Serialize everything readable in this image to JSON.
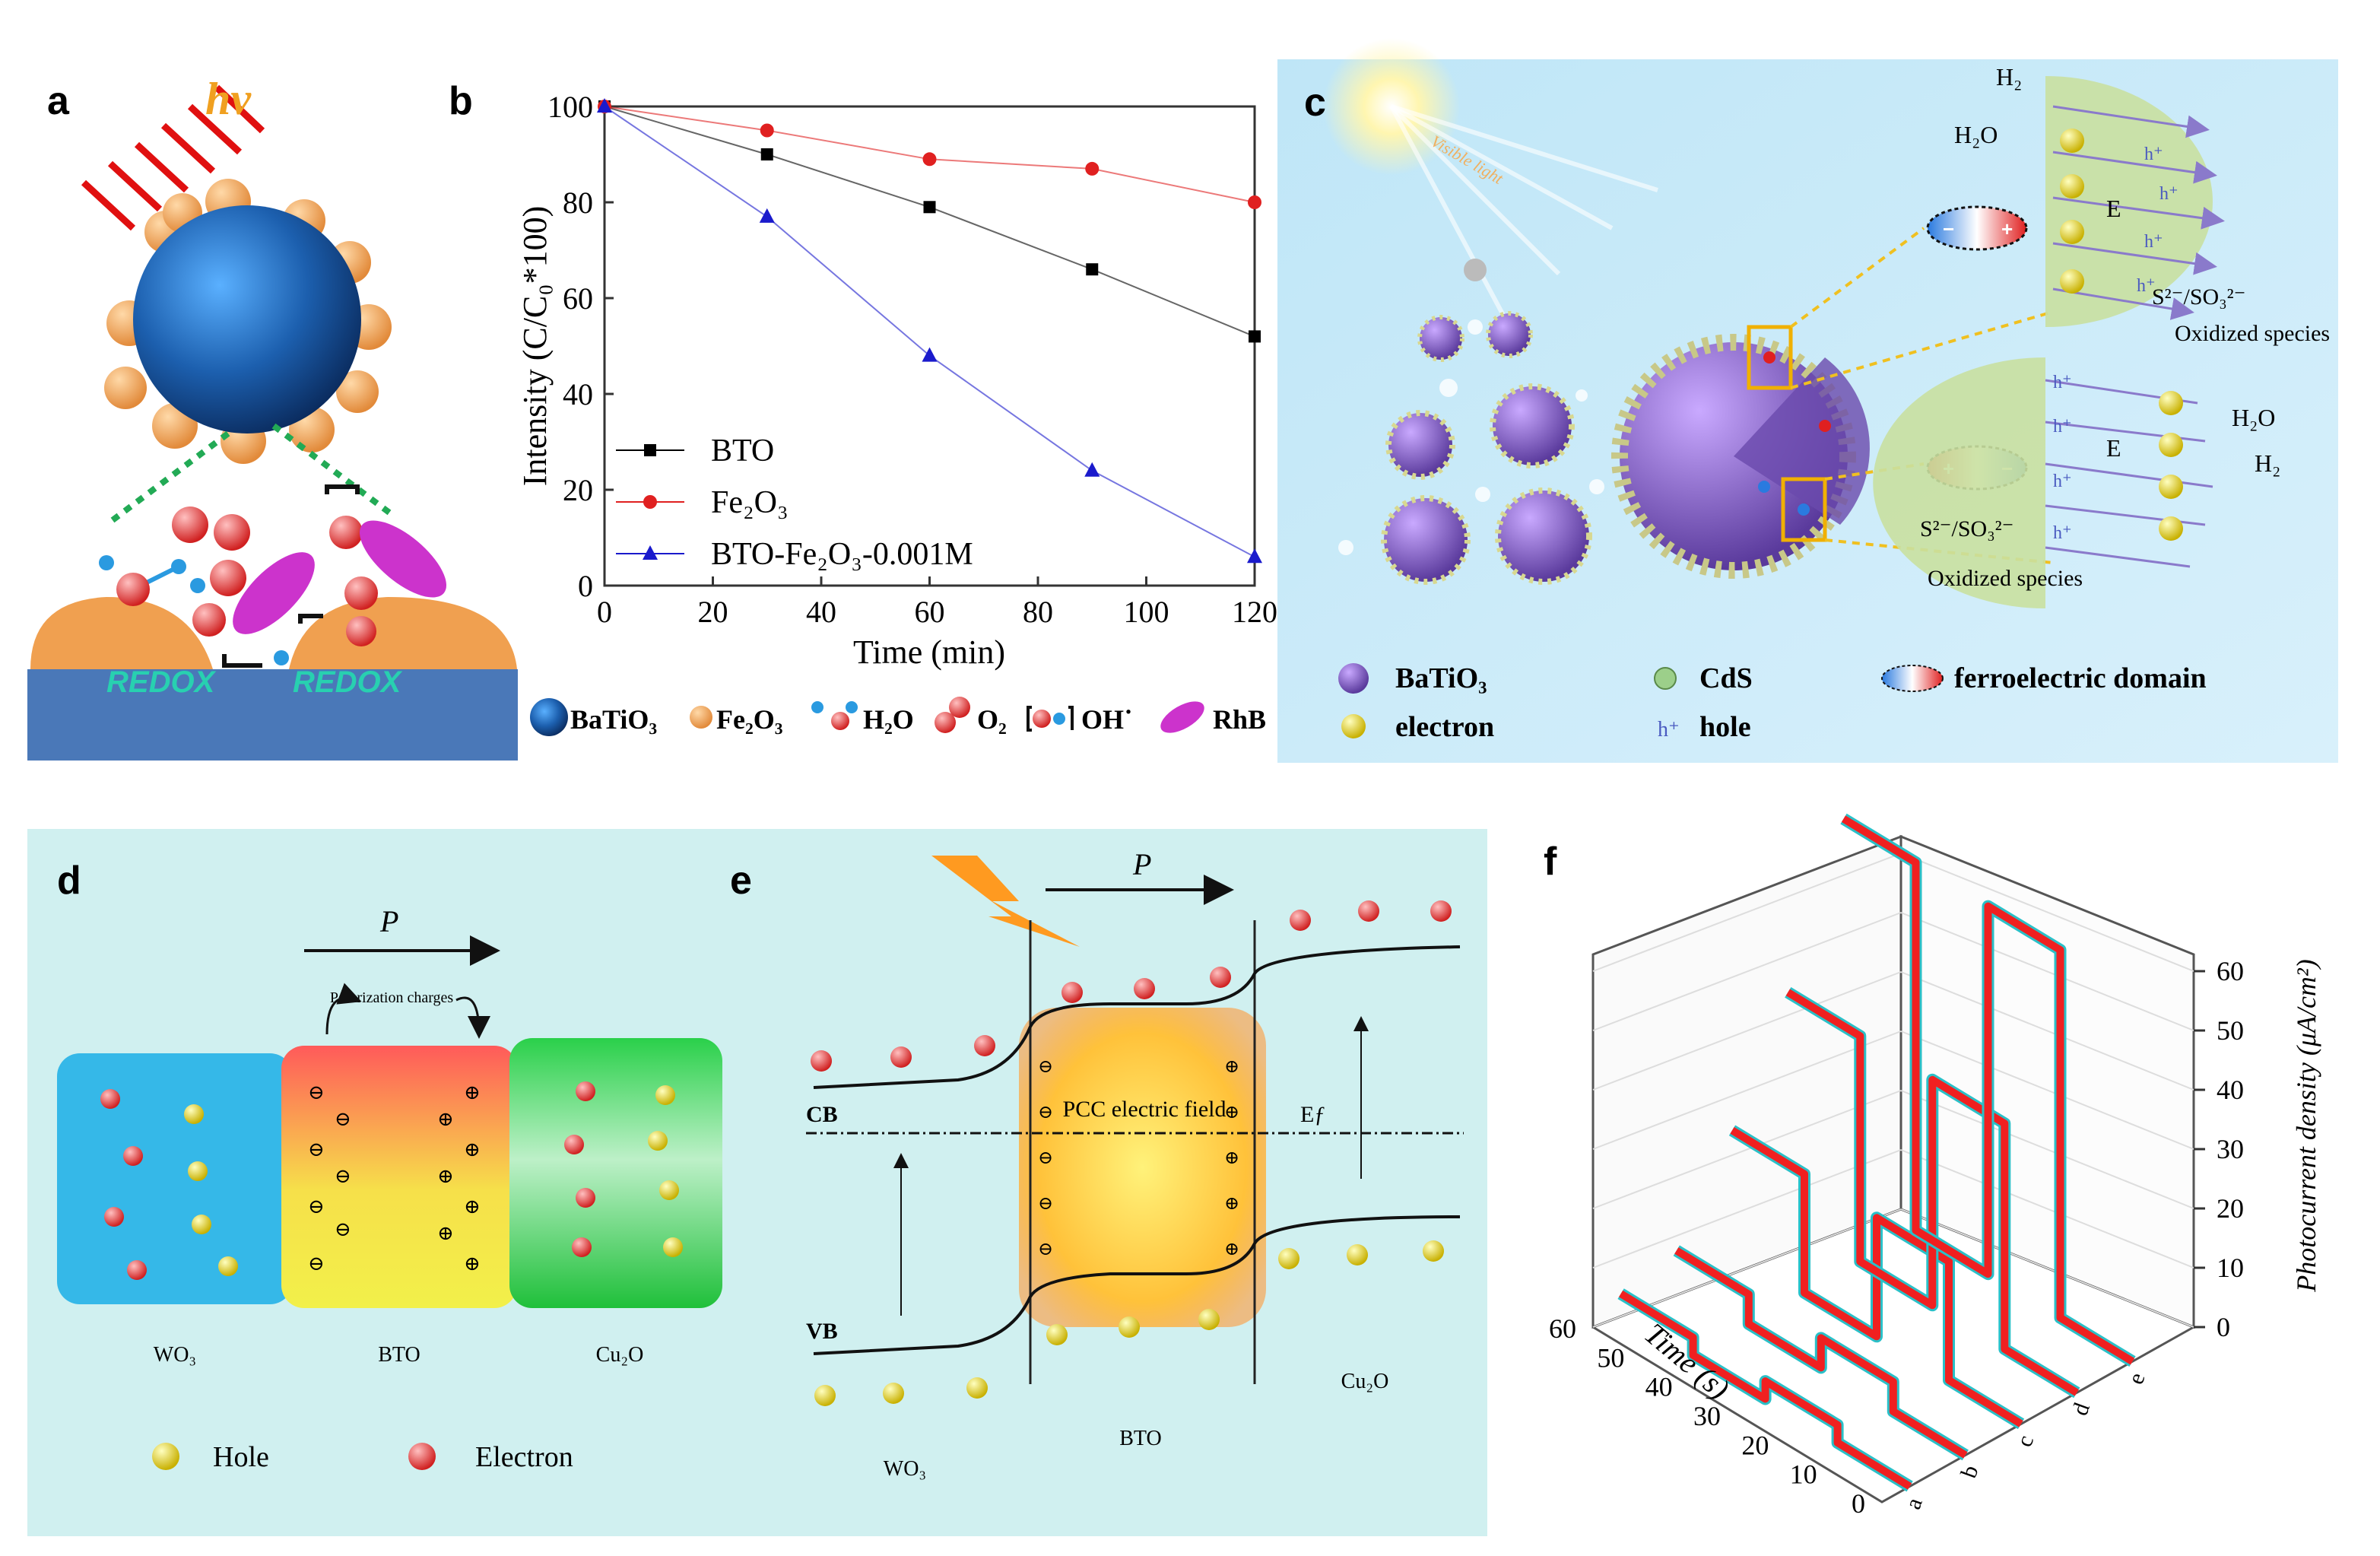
{
  "panels": {
    "a": {
      "label": "a",
      "light": "hv",
      "surface_text_left": "REDOX",
      "surface_text_right": "REDOX",
      "legend": [
        {
          "name": "BaTiO₃",
          "color": "#1f66b0"
        },
        {
          "name": "Fe₂O₃",
          "color": "#f0a050"
        },
        {
          "name": "H₂O",
          "color": "#e02020"
        },
        {
          "name": "O₂",
          "color": "#e02020"
        },
        {
          "name": "OH˙",
          "color": "#2aa0e0"
        },
        {
          "name": "RhB",
          "color": "#cc33cc"
        }
      ]
    },
    "b": {
      "label": "b"
    },
    "c": {
      "label": "c",
      "light": "Visible light",
      "top_h2": "H₂",
      "top_h2o": "H₂O",
      "e_top": "E",
      "e_bottom": "E",
      "hole": "h⁺",
      "sulfide_top": "S²⁻/SO₃²⁻",
      "oxidized_top": "Oxidized species",
      "bottom_h2o": "H₂O",
      "bottom_h2": "H₂",
      "sulfide_bottom": "S²⁻/SO₃²⁻",
      "oxidized_bottom": "Oxidized species",
      "legend": {
        "batio3": "BaTiO₃",
        "cds": "CdS",
        "domain": "ferroelectric domain",
        "electron": "electron",
        "hole": "hole"
      }
    },
    "d": {
      "label": "d",
      "polarization": "P",
      "polarization_charges": "Polarization charges",
      "blocks": [
        "WO₃",
        "BTO",
        "Cu₂O"
      ],
      "legend_hole": "Hole",
      "legend_electron": "Electron"
    },
    "e": {
      "label": "e",
      "polarization": "P",
      "cb": "CB",
      "vb": "VB",
      "ef": "Eƒ",
      "field": "PCC electric field",
      "materials": [
        "WO₃",
        "BTO",
        "Cu₂O"
      ]
    },
    "f": {
      "label": "f",
      "zlabel": "Photocurrent density (μA/cm²)",
      "ylabel": "Time (s)",
      "zticks": [
        "0",
        "10",
        "20",
        "30",
        "40",
        "50",
        "60"
      ],
      "yticks": [
        "0",
        "10",
        "20",
        "30",
        "40",
        "50",
        "60"
      ],
      "xticks": [
        "a",
        "b",
        "c",
        "d",
        "e"
      ]
    }
  },
  "chart_data": [
    {
      "type": "line",
      "title": "",
      "xlabel": "Time (min)",
      "ylabel": "Intensity (C/C₀*100)",
      "xlim": [
        0,
        120
      ],
      "ylim": [
        0,
        100
      ],
      "xticks": [
        0,
        20,
        40,
        60,
        80,
        100,
        120
      ],
      "yticks": [
        0,
        20,
        40,
        60,
        80,
        100
      ],
      "legend_position": "bottom-left",
      "series": [
        {
          "name": "BTO",
          "label": "BTO",
          "color": "#000000",
          "marker": "square",
          "x": [
            0,
            30,
            60,
            90,
            120
          ],
          "y": [
            100,
            90,
            79,
            66,
            52
          ]
        },
        {
          "name": "Fe2O3",
          "label": "Fe₂O₃",
          "color": "#e02020",
          "marker": "circle",
          "x": [
            0,
            30,
            60,
            90,
            120
          ],
          "y": [
            100,
            95,
            89,
            87,
            80
          ]
        },
        {
          "name": "BTO-Fe2O3-0.001M",
          "label": "BTO-Fe₂O₃-0.001M",
          "color": "#1a1acc",
          "marker": "triangle",
          "x": [
            0,
            30,
            60,
            90,
            120
          ],
          "y": [
            100,
            77,
            48,
            24,
            6
          ]
        }
      ]
    },
    {
      "type": "line",
      "title": "",
      "xlabel": "",
      "ylabel": "Time (s)",
      "zlabel": "Photocurrent density (μA/cm²)",
      "categories": [
        "a",
        "b",
        "c",
        "d",
        "e"
      ],
      "ylim": [
        0,
        60
      ],
      "zlim": [
        0,
        60
      ],
      "series": [
        {
          "name": "a",
          "on": 3,
          "off": 0
        },
        {
          "name": "b",
          "on": 5,
          "off": 0
        },
        {
          "name": "c",
          "on": 20,
          "off": 0
        },
        {
          "name": "d",
          "on": 38,
          "off": 0
        },
        {
          "name": "e",
          "on": 62,
          "off": 0
        }
      ]
    }
  ]
}
